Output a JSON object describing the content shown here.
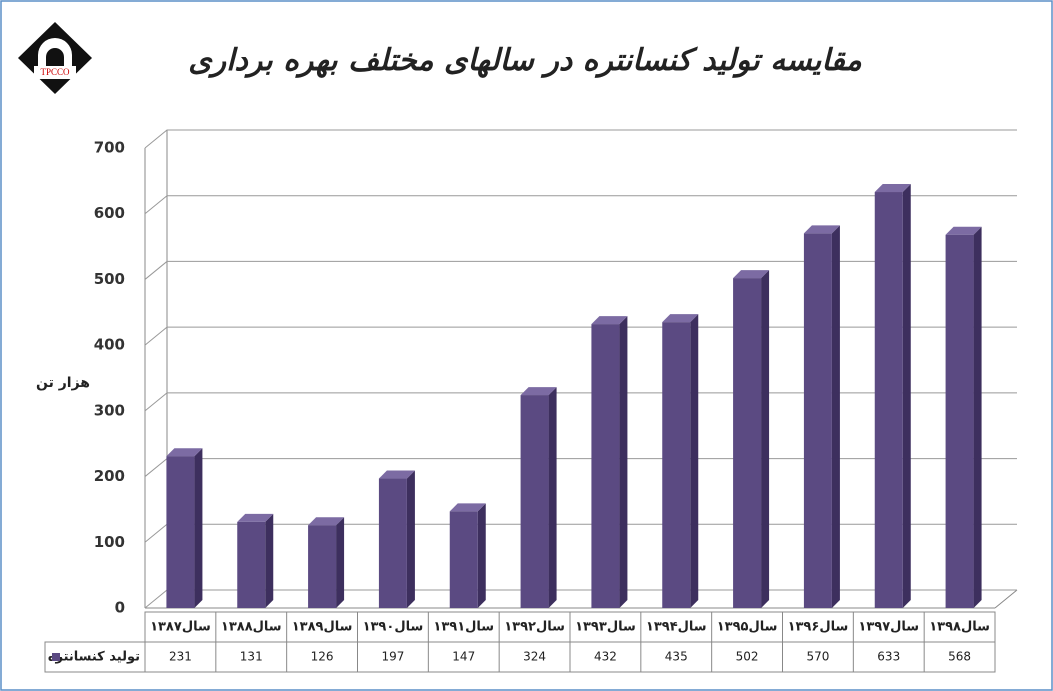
{
  "logo": "TPCCO",
  "chart_data": {
    "type": "bar3d",
    "title": "مقایسه تولید کنسانتره در سالهای مختلف بهره برداری",
    "y_label": "هزار تن",
    "categories": [
      "سال۱۳۸۷",
      "سال۱۳۸۸",
      "سال۱۳۸۹",
      "سال۱۳۹۰",
      "سال۱۳۹۱",
      "سال۱۳۹۲",
      "سال۱۳۹۳",
      "سال۱۳۹۴",
      "سال۱۳۹۵",
      "سال۱۳۹۶",
      "سال۱۳۹۷",
      "سال۱۳۹۸"
    ],
    "series": [
      {
        "name": "تولید کنسانتره",
        "color": "#5b4a82",
        "values": [
          231,
          131,
          126,
          197,
          147,
          324,
          432,
          435,
          502,
          570,
          633,
          568
        ]
      }
    ],
    "ylim": [
      0,
      700
    ],
    "yticks": [
      0,
      100,
      200,
      300,
      400,
      500,
      600,
      700
    ],
    "grid": true,
    "data_table": true
  }
}
